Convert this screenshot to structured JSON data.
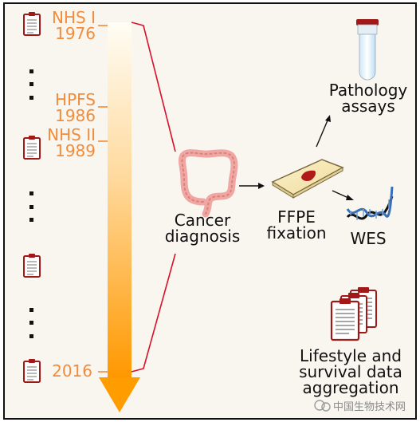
{
  "timeline": {
    "cohorts": [
      {
        "name": "NHS I",
        "year": "1976"
      },
      {
        "name": "HPFS",
        "year": "1986"
      },
      {
        "name": "NHS II",
        "year": "1989"
      }
    ],
    "end_year": "2016"
  },
  "steps": {
    "diagnosis": {
      "line1": "Cancer",
      "line2": "diagnosis"
    },
    "fixation": {
      "line1": "FFPE",
      "line2": "fixation"
    },
    "pathology": {
      "line1": "Pathology",
      "line2": "assays"
    },
    "wes": {
      "label": "WES"
    },
    "lifestyle": {
      "line1": "Lifestyle and",
      "line2": "survival data",
      "line3": "aggregation"
    }
  },
  "watermark": {
    "text": "中国生物技术网"
  },
  "colors": {
    "accent_orange": "#f28c3a",
    "arrow_orange": "#ff9d00",
    "clipboard_red": "#a01818",
    "bracket_red": "#d8102a",
    "background": "#f9f6f0"
  }
}
